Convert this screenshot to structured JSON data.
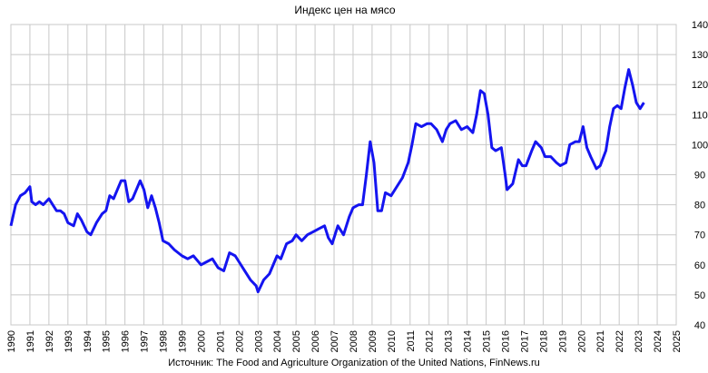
{
  "chart_data": {
    "type": "line",
    "title": "Индекс цен на мясо",
    "caption": "Источник: The Food and Agriculture Organization of the United Nations, FinNews.ru",
    "xlim": [
      1990,
      2025
    ],
    "xticks": [
      1990,
      1991,
      1992,
      1993,
      1994,
      1995,
      1996,
      1997,
      1998,
      1999,
      2000,
      2001,
      2002,
      2003,
      2004,
      2005,
      2006,
      2007,
      2008,
      2009,
      2010,
      2011,
      2012,
      2013,
      2014,
      2015,
      2016,
      2017,
      2018,
      2019,
      2020,
      2021,
      2022,
      2023,
      2024,
      2025
    ],
    "ylim": [
      40,
      140
    ],
    "yticks": [
      40,
      50,
      60,
      70,
      80,
      90,
      100,
      110,
      120,
      130,
      140
    ],
    "grid": true,
    "series": [
      {
        "color": "#1414f0",
        "x": [
          1990.0,
          1990.25,
          1990.5,
          1990.75,
          1991.0,
          1991.1,
          1991.3,
          1991.5,
          1991.7,
          1992.0,
          1992.2,
          1992.4,
          1992.6,
          1992.8,
          1993.0,
          1993.3,
          1993.5,
          1993.7,
          1994.0,
          1994.2,
          1994.5,
          1994.8,
          1995.0,
          1995.2,
          1995.4,
          1995.6,
          1995.8,
          1996.0,
          1996.2,
          1996.4,
          1996.6,
          1996.8,
          1997.0,
          1997.2,
          1997.4,
          1997.6,
          1997.8,
          1998.0,
          1998.3,
          1998.6,
          1999.0,
          1999.3,
          1999.6,
          2000.0,
          2000.3,
          2000.6,
          2000.9,
          2001.2,
          2001.5,
          2001.8,
          2002.0,
          2002.3,
          2002.6,
          2002.9,
          2003.0,
          2003.3,
          2003.6,
          2004.0,
          2004.2,
          2004.5,
          2004.8,
          2005.0,
          2005.3,
          2005.6,
          2005.9,
          2006.2,
          2006.5,
          2006.7,
          2006.9,
          2007.2,
          2007.5,
          2007.8,
          2008.0,
          2008.3,
          2008.5,
          2008.7,
          2008.9,
          2009.1,
          2009.3,
          2009.5,
          2009.7,
          2010.0,
          2010.3,
          2010.6,
          2010.9,
          2011.1,
          2011.3,
          2011.6,
          2011.9,
          2012.1,
          2012.4,
          2012.7,
          2012.9,
          2013.1,
          2013.4,
          2013.7,
          2014.0,
          2014.3,
          2014.5,
          2014.7,
          2014.9,
          2015.1,
          2015.3,
          2015.5,
          2015.8,
          2016.0,
          2016.1,
          2016.4,
          2016.7,
          2016.9,
          2017.1,
          2017.4,
          2017.6,
          2017.9,
          2018.1,
          2018.4,
          2018.7,
          2018.9,
          2019.2,
          2019.4,
          2019.7,
          2019.9,
          2020.1,
          2020.3,
          2020.5,
          2020.8,
          2021.0,
          2021.3,
          2021.5,
          2021.7,
          2021.9,
          2022.1,
          2022.3,
          2022.5,
          2022.7,
          2022.9,
          2023.1,
          2023.3
        ],
        "values": [
          73,
          80,
          83,
          84,
          86,
          81,
          80,
          81,
          80,
          82,
          80,
          78,
          78,
          77,
          74,
          73,
          77,
          75,
          71,
          70,
          74,
          77,
          78,
          83,
          82,
          85,
          88,
          88,
          81,
          82,
          85,
          88,
          85,
          79,
          83,
          79,
          74,
          68,
          67,
          65,
          63,
          62,
          63,
          60,
          61,
          62,
          59,
          58,
          64,
          63,
          61,
          58,
          55,
          53,
          51,
          55,
          57,
          63,
          62,
          67,
          68,
          70,
          68,
          70,
          71,
          72,
          73,
          69,
          67,
          73,
          70,
          76,
          79,
          80,
          80,
          90,
          101,
          94,
          78,
          78,
          84,
          83,
          86,
          89,
          94,
          100,
          107,
          106,
          107,
          107,
          105,
          101,
          105,
          107,
          108,
          105,
          106,
          104,
          110,
          118,
          117,
          110,
          99,
          98,
          99,
          90,
          85,
          87,
          95,
          93,
          93,
          98,
          101,
          99,
          96,
          96,
          94,
          93,
          94,
          100,
          101,
          101,
          106,
          99,
          96,
          92,
          93,
          98,
          106,
          112,
          113,
          112,
          119,
          125,
          120,
          114,
          112,
          114
        ]
      }
    ]
  }
}
